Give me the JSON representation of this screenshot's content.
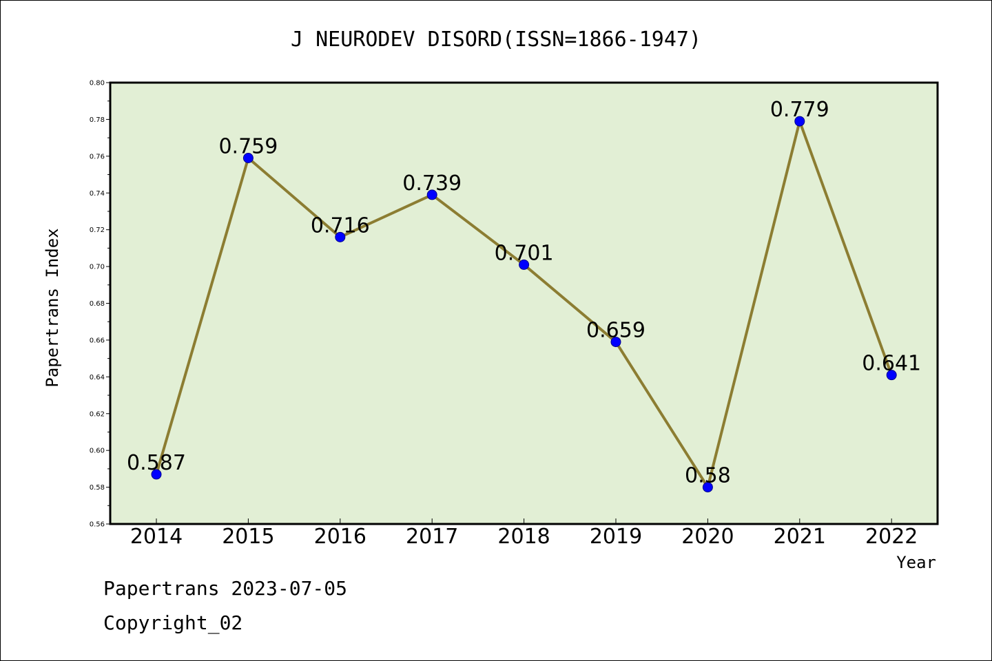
{
  "chart_data": {
    "type": "line",
    "title": "J NEURODEV DISORD(ISSN=1866-1947)",
    "xlabel": "Year",
    "ylabel": "Papertrans Index",
    "categories": [
      "2014",
      "2015",
      "2016",
      "2017",
      "2018",
      "2019",
      "2020",
      "2021",
      "2022"
    ],
    "series": [
      {
        "values": [
          0.587,
          0.759,
          0.716,
          0.739,
          0.701,
          0.659,
          0.58,
          0.779,
          0.641
        ],
        "labels": [
          "0.587",
          "0.759",
          "0.716",
          "0.739",
          "0.701",
          "0.659",
          "0.58",
          "0.779",
          "0.641"
        ]
      }
    ],
    "ylim": [
      0.56,
      0.8
    ],
    "yticks": [
      "0.56",
      "0.58",
      "0.60",
      "0.62",
      "0.64",
      "0.66",
      "0.68",
      "0.70",
      "0.72",
      "0.74",
      "0.76",
      "0.78",
      "0.80"
    ],
    "grid": false,
    "colors": {
      "plot_bg": "#e2efd5",
      "line": "#8c7d32",
      "marker": "#0000ff",
      "marker_edge": "#00008b"
    }
  },
  "footer": {
    "line1": "Papertrans 2023-07-05",
    "line2": "Copyright_02"
  }
}
